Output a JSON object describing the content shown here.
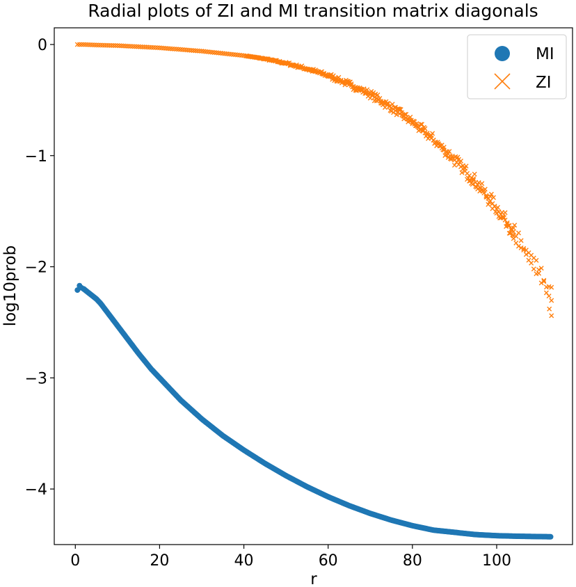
{
  "chart_data": {
    "type": "scatter",
    "title": "Radial plots of ZI and MI transition matrix diagonals",
    "xlabel": "r",
    "ylabel": "log10prob",
    "xlim": [
      -5,
      118
    ],
    "ylim": [
      -4.5,
      0.15
    ],
    "xticks": [
      0,
      20,
      40,
      60,
      80,
      100
    ],
    "yticks": [
      0,
      -1,
      -2,
      -3,
      -4
    ],
    "ytick_labels": [
      "0",
      "−1",
      "−2",
      "−3",
      "−4"
    ],
    "xtick_labels": [
      "0",
      "20",
      "40",
      "60",
      "80",
      "100"
    ],
    "grid": false,
    "legend_position": "top-right",
    "series": [
      {
        "name": "MI",
        "marker": "circle",
        "color": "#1f77b4",
        "x": [
          0.5,
          1,
          1.5,
          2,
          3,
          4,
          5,
          6,
          7,
          8,
          10,
          12,
          15,
          18,
          20,
          25,
          30,
          35,
          40,
          45,
          50,
          55,
          60,
          65,
          70,
          75,
          80,
          85,
          90,
          95,
          100,
          105,
          110,
          113
        ],
        "y": [
          -2.21,
          -2.17,
          -2.19,
          -2.2,
          -2.23,
          -2.26,
          -2.29,
          -2.33,
          -2.38,
          -2.43,
          -2.53,
          -2.63,
          -2.78,
          -2.92,
          -3.0,
          -3.2,
          -3.37,
          -3.52,
          -3.65,
          -3.77,
          -3.88,
          -3.98,
          -4.07,
          -4.15,
          -4.22,
          -4.28,
          -4.33,
          -4.37,
          -4.39,
          -4.41,
          -4.42,
          -4.425,
          -4.428,
          -4.43
        ]
      },
      {
        "name": "ZI",
        "marker": "x",
        "color": "#ff7f0e",
        "x": [
          0.5,
          2,
          5,
          10,
          15,
          20,
          25,
          30,
          35,
          40,
          45,
          50,
          55,
          60,
          65,
          70,
          75,
          80,
          85,
          90,
          95,
          100,
          103,
          105,
          107,
          109,
          110,
          111,
          112,
          113
        ],
        "y": [
          0.0,
          0.0,
          -0.005,
          -0.01,
          -0.02,
          -0.03,
          -0.045,
          -0.06,
          -0.08,
          -0.1,
          -0.13,
          -0.17,
          -0.22,
          -0.28,
          -0.36,
          -0.45,
          -0.57,
          -0.7,
          -0.86,
          -1.04,
          -1.24,
          -1.48,
          -1.63,
          -1.74,
          -1.85,
          -1.96,
          -2.02,
          -2.1,
          -2.18,
          -2.24
        ]
      }
    ]
  }
}
